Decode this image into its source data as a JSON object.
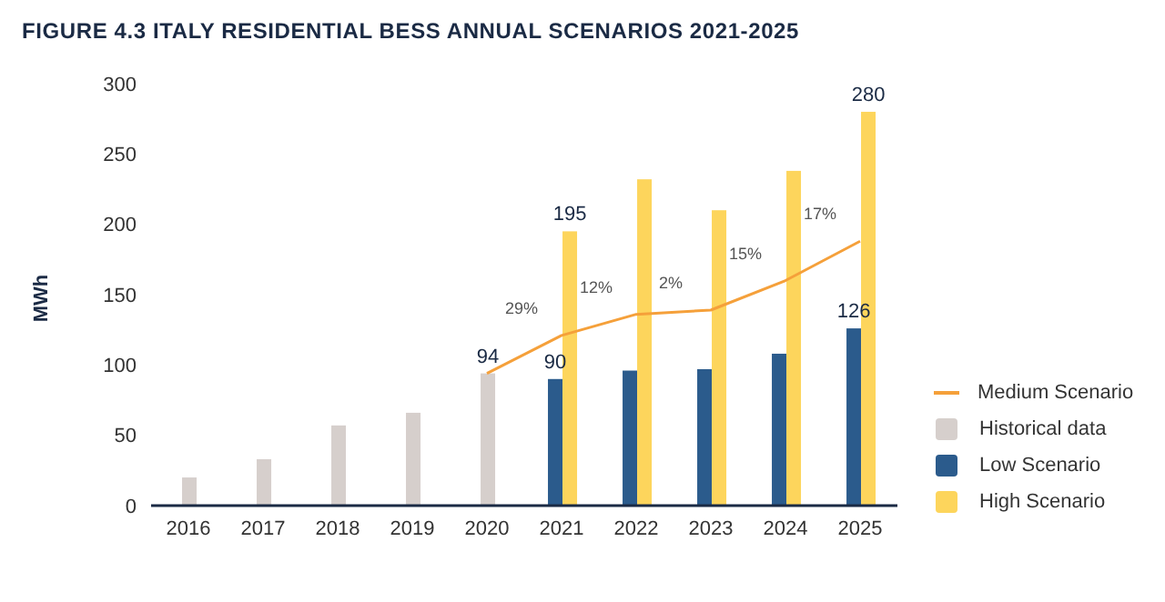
{
  "chart_data": {
    "type": "bar",
    "title": "FIGURE 4.3 ITALY RESIDENTIAL BESS ANNUAL SCENARIOS 2021-2025",
    "ylabel": "MWh",
    "categories": [
      "2016",
      "2017",
      "2018",
      "2019",
      "2020",
      "2021",
      "2022",
      "2023",
      "2024",
      "2025"
    ],
    "series": [
      {
        "name": "Medium Scenario",
        "type": "line",
        "color": "#f5a03a",
        "values": [
          null,
          null,
          null,
          null,
          94,
          121,
          136,
          139,
          160,
          188
        ]
      },
      {
        "name": "Historical data",
        "color": "#d6cfcc",
        "values": [
          20,
          33,
          57,
          66,
          94,
          null,
          null,
          null,
          null,
          null
        ],
        "value_labels": [
          null,
          null,
          null,
          null,
          "94",
          null,
          null,
          null,
          null,
          null
        ]
      },
      {
        "name": "Low Scenario",
        "color": "#2b5b8c",
        "values": [
          null,
          null,
          null,
          null,
          null,
          90,
          96,
          97,
          108,
          126
        ],
        "value_labels": [
          null,
          null,
          null,
          null,
          null,
          "90",
          null,
          null,
          null,
          "126"
        ]
      },
      {
        "name": "High Scenario",
        "color": "#fdd55c",
        "values": [
          null,
          null,
          null,
          null,
          null,
          195,
          232,
          210,
          238,
          280
        ],
        "value_labels": [
          null,
          null,
          null,
          null,
          null,
          "195",
          null,
          null,
          null,
          "280"
        ]
      }
    ],
    "annotations": [
      {
        "text": "29%",
        "x": "2021",
        "y": 121
      },
      {
        "text": "12%",
        "x": "2022",
        "y": 136
      },
      {
        "text": "2%",
        "x": "2023",
        "y": 139
      },
      {
        "text": "15%",
        "x": "2024",
        "y": 160
      },
      {
        "text": "17%",
        "x": "2025",
        "y": 188
      }
    ],
    "ylim": [
      0,
      300
    ],
    "yticks": [
      0,
      50,
      100,
      150,
      200,
      250,
      300
    ],
    "grid": false,
    "legend": "right",
    "marker": "none"
  }
}
